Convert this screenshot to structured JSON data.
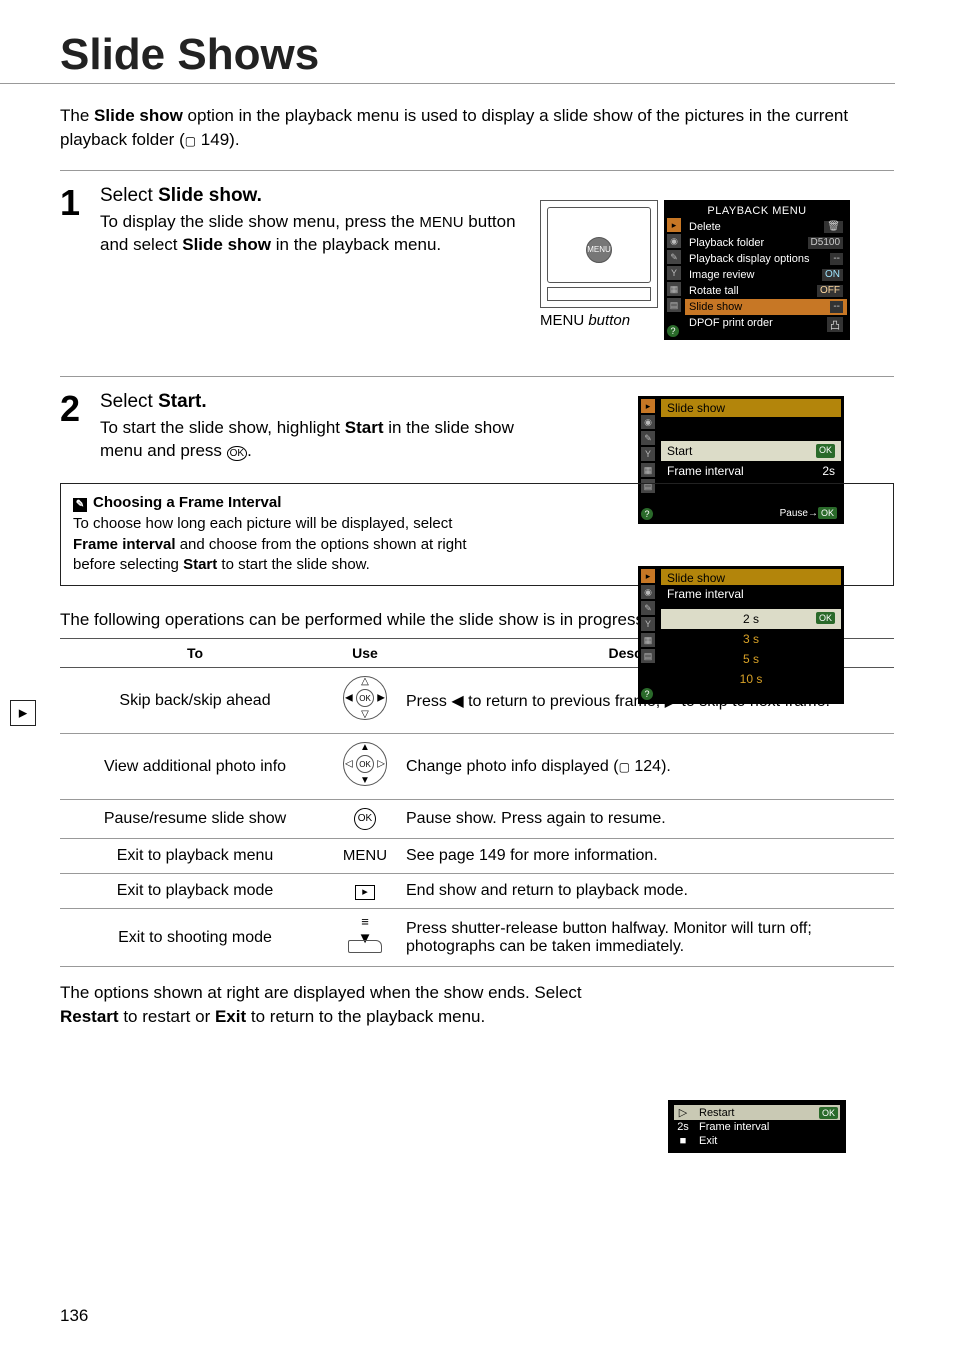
{
  "page": {
    "title": "Slide Shows",
    "intro_1": "The ",
    "intro_bold": "Slide show",
    "intro_2": " option in the playback menu is used to display a slide show of the pictures in the current playback folder (",
    "intro_ref": " 149).",
    "page_number": "136"
  },
  "step1": {
    "num": "1",
    "label": "Select ",
    "label_bold": "Slide show.",
    "text_1": "To display the slide show menu, press the ",
    "menu_word": "MENU",
    "text_2": " button and select ",
    "text_bold": "Slide show",
    "text_3": " in the playback menu.",
    "caption_suffix": " button"
  },
  "playback_menu": {
    "title": "PLAYBACK MENU",
    "rows": [
      {
        "label": "Delete",
        "badge": "🗑"
      },
      {
        "label": "Playback folder",
        "badge": "D5100"
      },
      {
        "label": "Playback display options",
        "badge": "--"
      },
      {
        "label": "Image review",
        "badge": "ON"
      },
      {
        "label": "Rotate tall",
        "badge": "OFF"
      },
      {
        "label": "Slide show",
        "badge": "--",
        "hl": true
      },
      {
        "label": "DPOF print order",
        "badge": "凸"
      }
    ]
  },
  "step2": {
    "num": "2",
    "label": "Select ",
    "label_bold": "Start.",
    "text_1": "To start the slide show, highlight ",
    "text_bold": "Start",
    "text_2": " in the slide show menu and press ",
    "ok": "OK",
    "text_3": "."
  },
  "slide_menu": {
    "title": "Slide show",
    "start": "Start",
    "interval_label": "Frame interval",
    "interval_value": "2s",
    "footer": "Pause→OK"
  },
  "tip": {
    "title": "Choosing a Frame Interval",
    "t1": "To choose how long each picture will be displayed, select ",
    "b1": "Frame interval",
    "t2": " and choose from the options shown at right before selecting ",
    "b2": "Start",
    "t3": " to start the slide show."
  },
  "interval_menu": {
    "title": "Slide show",
    "subtitle": "Frame interval",
    "options": [
      "2 s",
      "3 s",
      "5 s",
      "10 s"
    ],
    "hl_index": 0
  },
  "ops_intro": "The following operations can be performed while the slide show is in progress:",
  "ops_table": {
    "h1": "To",
    "h2": "Use",
    "h3": "Description",
    "rows": [
      {
        "to": "Skip back/skip ahead",
        "use": "dpad-lr",
        "desc_1": "Press ",
        "desc_l": "◀",
        "desc_2": " to return to previous frame, ",
        "desc_r": "▶",
        "desc_3": " to skip to next frame."
      },
      {
        "to": "View additional photo info",
        "use": "dpad-ud",
        "desc_1": "Change photo info displayed (",
        "desc_ref": " 124)."
      },
      {
        "to": "Pause/resume slide show",
        "use": "ok",
        "desc": "Pause show.  Press again to resume."
      },
      {
        "to": "Exit to playback menu",
        "use": "menu",
        "desc": "See page 149 for more information."
      },
      {
        "to": "Exit to playback mode",
        "use": "play",
        "desc": "End show and return to playback mode."
      },
      {
        "to": "Exit to shooting mode",
        "use": "shutter",
        "desc": "Press shutter-release button halfway.  Monitor will turn off; photographs can be taken immediately."
      }
    ]
  },
  "end": {
    "t1": "The options shown at right are displayed when the show ends.  Select ",
    "b1": "Restart",
    "t2": " to restart or ",
    "b2": "Exit",
    "t3": " to return to the playback menu."
  },
  "end_menu": {
    "rows": [
      {
        "sym": "▷",
        "label": "Restart",
        "hl": true,
        "ok": true
      },
      {
        "sym": "2s",
        "label": "Frame interval"
      },
      {
        "sym": "■",
        "label": "Exit"
      }
    ]
  },
  "symbols": {
    "ok_circle": "㉧",
    "play_box": "▸",
    "menu": "MENU",
    "book": "📖"
  },
  "colors": {
    "hl_orange": "#c77725",
    "hl_olive": "#b3850b",
    "hl_option": "#dcdcc8"
  }
}
